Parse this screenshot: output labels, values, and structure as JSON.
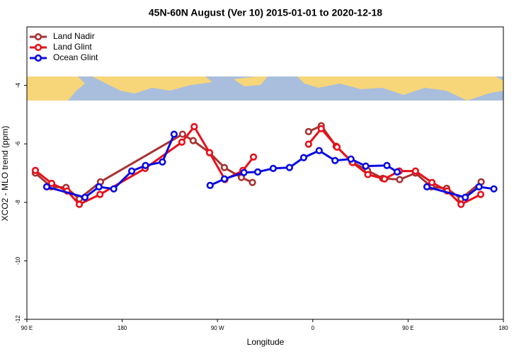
{
  "chart_data": {
    "type": "line",
    "title": "45N-60N August (Ver 10)   2015-01-01 to 2020-12-18",
    "x_label": "Longitude",
    "y_label": "XCO2 - MLO trend (ppm)",
    "xlim": [
      90,
      540
    ],
    "ylim": [
      -12,
      -2
    ],
    "xticks": [
      {
        "value": 90,
        "label": "90 E"
      },
      {
        "value": 180,
        "label": "180"
      },
      {
        "value": 270,
        "label": "90 W"
      },
      {
        "value": 360,
        "label": "0"
      },
      {
        "value": 450,
        "label": "90 E"
      },
      {
        "value": 540,
        "label": "180"
      }
    ],
    "yticks": [
      -12,
      -10,
      -8,
      -6,
      -4
    ],
    "legend": "top-left",
    "series": [
      {
        "name": "Land Nadir",
        "color": "#a83232",
        "x": [
          98,
          113,
          127,
          139.5,
          159.5,
          237,
          247,
          262.5,
          276.5,
          292.6,
          303,
          null,
          356,
          368,
          382,
          397,
          411.6,
          426,
          442,
          457,
          472,
          486.5,
          500,
          519
        ],
        "values": [
          -7.0,
          -7.47,
          -7.49,
          -7.88,
          -7.3,
          -5.67,
          -5.89,
          -6.3,
          -6.81,
          -7.15,
          -7.32,
          null,
          -5.58,
          -5.38,
          -6.08,
          -6.62,
          -6.91,
          -7.18,
          -7.22,
          -7.0,
          -7.47,
          -7.52,
          -7.88,
          -7.3
        ]
      },
      {
        "name": "Land Glint",
        "color": "#e8101a",
        "x": [
          98,
          113.4,
          128,
          139.5,
          159,
          201.7,
          236.4,
          248,
          262.5,
          277,
          294,
          304,
          null,
          356,
          368,
          382.9,
          397.6,
          412,
          427.7,
          441.7,
          457,
          472.5,
          487,
          500,
          518.6
        ],
        "values": [
          -6.91,
          -7.35,
          -7.61,
          -8.07,
          -7.73,
          -6.84,
          -5.94,
          -5.41,
          -6.3,
          -7.22,
          -6.91,
          -6.45,
          null,
          -6.01,
          -5.48,
          -6.11,
          -6.64,
          -7.05,
          -7.2,
          -6.93,
          -6.93,
          -7.32,
          -7.61,
          -8.07,
          -7.73
        ]
      },
      {
        "name": "Ocean Glint",
        "color": "#0a0ae0",
        "x": [
          108.7,
          144.8,
          158,
          172,
          189,
          202,
          218,
          229,
          null,
          263,
          276.5,
          295,
          308,
          322.6,
          338,
          351.4,
          366,
          381,
          396,
          410,
          430,
          439.7,
          null,
          467.8,
          504,
          517,
          531
        ],
        "values": [
          -7.47,
          -7.83,
          -7.47,
          -7.54,
          -6.93,
          -6.74,
          -6.62,
          -5.67,
          null,
          -7.42,
          -7.2,
          -6.98,
          -6.96,
          -6.84,
          -6.81,
          -6.47,
          -6.23,
          -6.57,
          -6.52,
          -6.76,
          -6.74,
          -6.96,
          null,
          -7.47,
          -7.83,
          -7.47,
          -7.54
        ]
      }
    ]
  }
}
